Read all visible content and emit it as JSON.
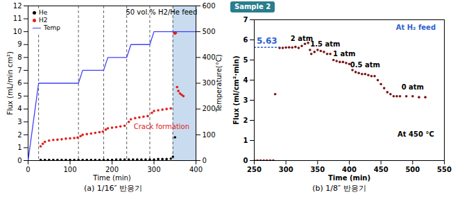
{
  "chart_data": [
    {
      "type": "scatter",
      "x_label": "Time (min)",
      "y_label": "Flux (mL/min cm²)",
      "y2_label": "Temperature(°C)",
      "caption": "(a) 1/16″ 반응기",
      "xlim": [
        0,
        400
      ],
      "xticks": [
        0,
        100,
        200,
        300,
        400
      ],
      "ylim": [
        0,
        12
      ],
      "yticks": [
        0,
        1,
        2,
        3,
        4,
        5,
        6,
        7,
        8,
        9,
        10,
        11,
        12
      ],
      "y2lim": [
        0,
        600
      ],
      "y2ticks": [
        0,
        100,
        200,
        300,
        400,
        500,
        600
      ],
      "legend": "upper left",
      "series": [
        {
          "name": "He",
          "color": "#000000",
          "marker": "dot",
          "x": [
            30,
            40,
            50,
            60,
            70,
            80,
            90,
            100,
            110,
            120,
            130,
            140,
            150,
            160,
            170,
            180,
            190,
            200,
            210,
            220,
            230,
            240,
            250,
            260,
            270,
            280,
            290,
            300,
            310,
            320,
            330,
            340,
            345,
            350
          ],
          "values": [
            0.05,
            0.05,
            0.05,
            0.05,
            0.05,
            0.05,
            0.05,
            0.05,
            0.05,
            0.05,
            0.05,
            0.05,
            0.05,
            0.05,
            0.05,
            0.05,
            0.05,
            0.05,
            0.08,
            0.08,
            0.08,
            0.08,
            0.08,
            0.08,
            0.08,
            0.08,
            0.08,
            0.08,
            0.12,
            0.12,
            0.12,
            0.15,
            0.3,
            1.8
          ]
        },
        {
          "name": "H2",
          "color": "#e0201b",
          "marker": "dot",
          "x": [
            30,
            35,
            40,
            50,
            60,
            70,
            80,
            90,
            100,
            110,
            118,
            125,
            130,
            140,
            150,
            160,
            170,
            178,
            185,
            190,
            200,
            210,
            220,
            230,
            240,
            245,
            255,
            265,
            275,
            285,
            295,
            300,
            310,
            320,
            330,
            340,
            348,
            350,
            352,
            355,
            358,
            362,
            366,
            370
          ],
          "values": [
            1.1,
            1.3,
            1.45,
            1.55,
            1.6,
            1.62,
            1.65,
            1.7,
            1.72,
            1.75,
            1.78,
            1.9,
            2.0,
            2.05,
            2.1,
            2.15,
            2.2,
            2.25,
            2.4,
            2.5,
            2.55,
            2.6,
            2.65,
            2.7,
            3.0,
            3.2,
            3.3,
            3.35,
            3.4,
            3.45,
            3.7,
            3.85,
            3.9,
            3.95,
            4.0,
            4.05,
            9.9,
            9.85,
            9.9,
            5.7,
            5.4,
            5.2,
            5.1,
            5.0
          ]
        },
        {
          "name": "Temp",
          "type": "line",
          "color": "#4040ff",
          "line_style": "solid",
          "axis": "y2",
          "x": [
            0,
            25,
            120,
            130,
            180,
            190,
            235,
            245,
            290,
            300,
            400
          ],
          "values": [
            0,
            300,
            300,
            350,
            350,
            400,
            400,
            450,
            450,
            500,
            500
          ]
        }
      ],
      "step_times": [
        25,
        120,
        180,
        235,
        290,
        345
      ],
      "shaded_x": [
        345,
        400
      ],
      "annotations": [
        {
          "text": "50 vol.% H2/He feed",
          "x": 318,
          "y": 11.5,
          "color": "#000000"
        },
        {
          "text": "Crack formation",
          "x": 318,
          "y": 2.6,
          "color": "#e0201b"
        }
      ]
    },
    {
      "type": "scatter",
      "header": "Sample 2",
      "x_label": "Time (min)",
      "y_label": "Flux (ml/cm²·min)",
      "caption": "(b) 1/8″ 반응기",
      "xlim": [
        250,
        550
      ],
      "xticks": [
        250,
        300,
        350,
        400,
        450,
        500,
        550
      ],
      "ylim": [
        0,
        7
      ],
      "yticks": [
        0,
        1,
        2,
        3,
        4,
        5,
        6,
        7
      ],
      "series": [
        {
          "color": "#7b1416",
          "marker": "dot",
          "x": [
            250,
            255,
            260,
            265,
            270,
            275,
            280,
            283,
            290,
            295,
            300,
            305,
            310,
            315,
            320,
            325,
            330,
            335,
            338,
            340,
            345,
            350,
            355,
            360,
            365,
            370,
            375,
            380,
            385,
            390,
            395,
            400,
            405,
            410,
            415,
            420,
            425,
            430,
            435,
            440,
            445,
            450,
            455,
            460,
            465,
            470,
            475,
            480,
            490,
            500,
            510,
            520
          ],
          "values": [
            0,
            0,
            0,
            0,
            0,
            0,
            0,
            3.3,
            5.6,
            5.6,
            5.62,
            5.63,
            5.62,
            5.65,
            5.6,
            5.7,
            5.8,
            5.85,
            5.5,
            5.3,
            5.4,
            5.5,
            5.45,
            5.4,
            5.3,
            5.3,
            5.0,
            4.95,
            4.9,
            4.9,
            4.85,
            4.8,
            4.5,
            4.4,
            4.35,
            4.3,
            4.3,
            4.25,
            4.2,
            4.2,
            4.0,
            3.8,
            3.6,
            3.4,
            3.3,
            3.2,
            3.2,
            3.2,
            3.2,
            3.2,
            3.15,
            3.15
          ]
        }
      ],
      "reference_line": {
        "y": 5.63,
        "x_end": 290,
        "label": "5.63",
        "color": "#2e5fd0"
      },
      "annotations": [
        {
          "text": "2 atm",
          "x": 325,
          "y": 6.05,
          "color": "#000000"
        },
        {
          "text": "1.5 atm",
          "x": 362,
          "y": 5.8,
          "color": "#000000"
        },
        {
          "text": "1 atm",
          "x": 392,
          "y": 5.3,
          "color": "#000000"
        },
        {
          "text": "0.5 atm",
          "x": 425,
          "y": 4.75,
          "color": "#000000"
        },
        {
          "text": "0 atm",
          "x": 500,
          "y": 3.65,
          "color": "#000000"
        },
        {
          "text": "At H₂ feed",
          "x": 505,
          "y": 6.6,
          "color": "#2e5fd0"
        },
        {
          "text": "At 450 °C",
          "x": 505,
          "y": 1.3,
          "color": "#000000"
        }
      ]
    }
  ]
}
